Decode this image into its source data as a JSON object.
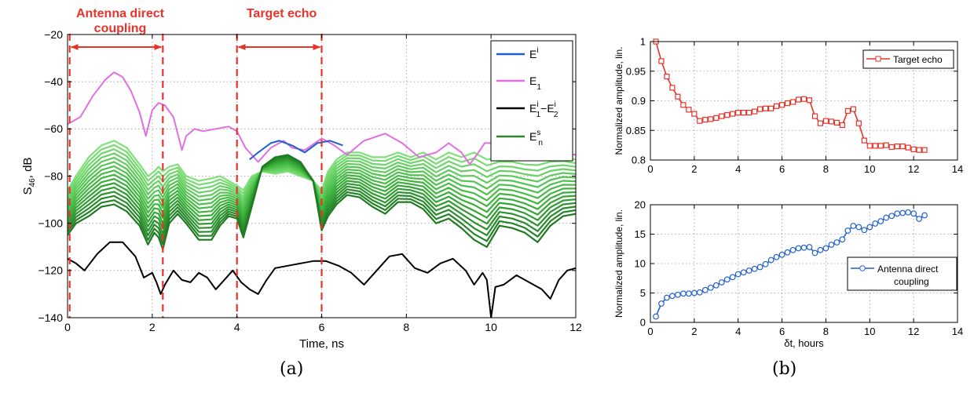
{
  "captions": {
    "a": "(a)",
    "b": "(b)"
  },
  "chart_data": [
    {
      "id": "a",
      "type": "line",
      "xlabel": "Time, ns",
      "ylabel": "S46, dB",
      "ylabel_main": "S",
      "ylabel_sub": "46",
      "ylabel_rest": ", dB",
      "xlim": [
        0,
        12
      ],
      "ylim": [
        -140,
        -20
      ],
      "xticks": [
        0,
        2,
        4,
        6,
        8,
        10,
        12
      ],
      "yticks": [
        -20,
        -40,
        -60,
        -80,
        -100,
        -120,
        -140
      ],
      "grid": true,
      "legend_position": "top-right",
      "legend": [
        {
          "main": "E",
          "sup": "i",
          "sub": "",
          "color": "#1f5fd0"
        },
        {
          "main": "E",
          "sup": "",
          "sub": "1",
          "color": "#e070e0"
        },
        {
          "main": "E",
          "sup": "i",
          "sub": "1",
          "tail_main": "−E",
          "tail_sup": "i",
          "tail_sub": "2",
          "color": "#000000"
        },
        {
          "main": "E",
          "sup": "s",
          "sub": "n",
          "color": "#2a8a2a"
        }
      ],
      "annotations": [
        {
          "text_lines": [
            "Antenna direct",
            "coupling"
          ],
          "x_from": 0.05,
          "x_to": 2.25,
          "color": "#e8322a"
        },
        {
          "text_lines": [
            "Target echo"
          ],
          "x_from": 4.0,
          "x_to": 6.0,
          "color": "#e8322a"
        }
      ],
      "series": [
        {
          "legend": "E1",
          "color": "#e070e0",
          "x": [
            0,
            0.3,
            0.6,
            0.9,
            1.1,
            1.3,
            1.5,
            1.7,
            1.85,
            2.0,
            2.15,
            2.3,
            2.5,
            2.7,
            2.8,
            3.0,
            3.2,
            3.5,
            3.8,
            4.0,
            4.2,
            4.5,
            4.8,
            5.1,
            5.3,
            5.6,
            6.0,
            6.3,
            6.6,
            7.0,
            7.5,
            7.9,
            8.3,
            8.7,
            9.0,
            9.3,
            9.5,
            9.7,
            9.85,
            10.0,
            10.2,
            10.5,
            10.8,
            11.0,
            11.3,
            11.6,
            12.0
          ],
          "y": [
            -58,
            -55,
            -46,
            -39,
            -36,
            -38,
            -44,
            -53,
            -63,
            -52,
            -49,
            -50,
            -55,
            -69,
            -63,
            -60,
            -61,
            -60,
            -59,
            -61,
            -68,
            -74,
            -68,
            -65,
            -68,
            -69,
            -64,
            -67,
            -71,
            -65,
            -62,
            -66,
            -72,
            -70,
            -66,
            -70,
            -75,
            -70,
            -66,
            -66,
            -69,
            -67,
            -69,
            -72,
            -68,
            -70,
            -71
          ]
        },
        {
          "legend": "Ei",
          "color": "#1f5fd0",
          "x": [
            4.3,
            4.5,
            4.8,
            5.0,
            5.3,
            5.6,
            5.9,
            6.2,
            6.5
          ],
          "y": [
            -73,
            -70,
            -66,
            -65,
            -67,
            -70,
            -66,
            -65,
            -67
          ]
        },
        {
          "legend": "Ei1-Ei2",
          "color": "#000000",
          "x": [
            0,
            0.2,
            0.4,
            0.7,
            1.0,
            1.3,
            1.6,
            1.8,
            2.0,
            2.1,
            2.2,
            2.3,
            2.5,
            2.7,
            2.9,
            3.1,
            3.3,
            3.5,
            3.7,
            3.9,
            4.1,
            4.3,
            4.5,
            4.7,
            4.9,
            5.2,
            5.5,
            5.8,
            6.1,
            6.4,
            6.7,
            7.0,
            7.3,
            7.6,
            7.9,
            8.2,
            8.5,
            8.8,
            9.1,
            9.4,
            9.6,
            9.8,
            9.9,
            10.0,
            10.1,
            10.3,
            10.6,
            10.9,
            11.2,
            11.4,
            11.6,
            11.8,
            12.0
          ],
          "y": [
            -115,
            -117,
            -120,
            -113,
            -108,
            -108,
            -114,
            -123,
            -121,
            -125,
            -130,
            -126,
            -120,
            -124,
            -125,
            -121,
            -123,
            -128,
            -124,
            -120,
            -125,
            -128,
            -130,
            -124,
            -119,
            -118,
            -117,
            -116,
            -116,
            -118,
            -121,
            -126,
            -120,
            -114,
            -113,
            -119,
            -121,
            -117,
            -115,
            -120,
            -126,
            -121,
            -124,
            -140,
            -127,
            -126,
            -122,
            -125,
            -128,
            -132,
            -124,
            -120,
            -119
          ]
        }
      ],
      "green_family": {
        "legend": "Esn",
        "count": 16,
        "x": [
          0,
          0.2,
          0.5,
          0.8,
          1.1,
          1.4,
          1.7,
          1.9,
          2.05,
          2.15,
          2.25,
          2.4,
          2.6,
          2.8,
          3.1,
          3.4,
          3.6,
          3.8,
          4.0,
          4.15,
          4.35,
          4.6,
          4.9,
          5.2,
          5.5,
          5.8,
          6.0,
          6.15,
          6.35,
          6.6,
          6.9,
          7.2,
          7.5,
          7.8,
          8.1,
          8.4,
          8.7,
          9.0,
          9.3,
          9.6,
          9.9,
          10.2,
          10.5,
          10.8,
          11.1,
          11.4,
          11.7,
          12.0
        ],
        "top": [
          -86,
          -80,
          -72,
          -67,
          -65,
          -68,
          -75,
          -80,
          -78,
          -76,
          -78,
          -76,
          -75,
          -80,
          -82,
          -81,
          -80,
          -82,
          -84,
          -86,
          -80,
          -78,
          -79,
          -78,
          -80,
          -82,
          -86,
          -78,
          -73,
          -70,
          -70,
          -72,
          -72,
          -70,
          -72,
          -70,
          -73,
          -70,
          -72,
          -70,
          -73,
          -72,
          -72,
          -73,
          -73,
          -72,
          -72,
          -73
        ],
        "bottom": [
          -105,
          -100,
          -97,
          -93,
          -92,
          -95,
          -101,
          -109,
          -104,
          -106,
          -111,
          -100,
          -96,
          -100,
          -107,
          -107,
          -101,
          -97,
          -98,
          -106,
          -93,
          -76,
          -72,
          -71,
          -74,
          -82,
          -103,
          -97,
          -92,
          -88,
          -89,
          -93,
          -96,
          -91,
          -91,
          -94,
          -100,
          -98,
          -102,
          -107,
          -110,
          -101,
          -102,
          -104,
          -108,
          -101,
          -97,
          -96
        ]
      }
    },
    {
      "id": "b-top",
      "type": "line",
      "xlabel": "",
      "ylabel": "Normalized amplitude, lin.",
      "xlim": [
        0,
        14
      ],
      "ylim": [
        0.8,
        1.0
      ],
      "xticks": [
        0,
        2,
        4,
        6,
        8,
        10,
        12,
        14
      ],
      "yticks": [
        0.8,
        0.85,
        0.9,
        0.95,
        1
      ],
      "ytick_labels": [
        "0.8",
        "0.85",
        "0.9",
        "0.95",
        "1"
      ],
      "grid": true,
      "legend_position": "top-right",
      "series": [
        {
          "name": "Target echo",
          "color": "#e8322a",
          "marker": "square",
          "x": [
            0.25,
            0.5,
            0.75,
            1,
            1.25,
            1.5,
            1.75,
            2,
            2.25,
            2.5,
            2.75,
            3,
            3.25,
            3.5,
            3.75,
            4,
            4.25,
            4.5,
            4.75,
            5,
            5.25,
            5.5,
            5.75,
            6,
            6.25,
            6.5,
            6.75,
            7,
            7.25,
            7.5,
            7.75,
            8,
            8.25,
            8.5,
            8.75,
            9,
            9.25,
            9.5,
            9.75,
            10,
            10.25,
            10.5,
            10.75,
            11,
            11.25,
            11.5,
            11.75,
            12,
            12.25,
            12.5
          ],
          "y": [
            1.0,
            0.967,
            0.941,
            0.922,
            0.907,
            0.893,
            0.885,
            0.878,
            0.866,
            0.868,
            0.869,
            0.871,
            0.874,
            0.876,
            0.878,
            0.88,
            0.88,
            0.88,
            0.882,
            0.886,
            0.887,
            0.887,
            0.891,
            0.893,
            0.896,
            0.898,
            0.902,
            0.903,
            0.901,
            0.874,
            0.862,
            0.866,
            0.865,
            0.863,
            0.859,
            0.883,
            0.886,
            0.862,
            0.833,
            0.824,
            0.824,
            0.824,
            0.825,
            0.822,
            0.823,
            0.823,
            0.821,
            0.818,
            0.817,
            0.817
          ]
        }
      ]
    },
    {
      "id": "b-bottom",
      "type": "line",
      "xlabel": "δt, hours",
      "ylabel": "Normalized amplitude, lin.",
      "xlim": [
        0,
        14
      ],
      "ylim": [
        0,
        20
      ],
      "xticks": [
        0,
        2,
        4,
        6,
        8,
        10,
        12,
        14
      ],
      "yticks": [
        0,
        5,
        10,
        15,
        20
      ],
      "grid": true,
      "legend_position": "bottom-right",
      "series": [
        {
          "name": "Antenna direct\ncoupling",
          "color": "#1f5fd0",
          "marker": "circle",
          "x": [
            0.25,
            0.5,
            0.75,
            1,
            1.25,
            1.5,
            1.75,
            2,
            2.25,
            2.5,
            2.75,
            3,
            3.25,
            3.5,
            3.75,
            4,
            4.25,
            4.5,
            4.75,
            5,
            5.25,
            5.5,
            5.75,
            6,
            6.25,
            6.5,
            6.75,
            7,
            7.25,
            7.5,
            7.75,
            8,
            8.25,
            8.5,
            8.75,
            9,
            9.25,
            9.5,
            9.75,
            10,
            10.25,
            10.5,
            10.75,
            11,
            11.25,
            11.5,
            11.75,
            12,
            12.25,
            12.5
          ],
          "y": [
            1.0,
            3.2,
            4.2,
            4.5,
            4.7,
            4.9,
            4.9,
            5.0,
            5.1,
            5.5,
            5.9,
            6.3,
            6.8,
            7.3,
            7.7,
            8.2,
            8.5,
            8.8,
            9.1,
            9.4,
            9.9,
            10.6,
            11.1,
            11.5,
            11.9,
            12.3,
            12.6,
            12.7,
            12.8,
            11.8,
            12.3,
            12.6,
            13.2,
            13.6,
            14.1,
            15.6,
            16.4,
            16.2,
            15.7,
            16.2,
            16.8,
            17.2,
            17.8,
            18.1,
            18.5,
            18.6,
            18.7,
            18.5,
            17.6,
            18.2
          ]
        }
      ]
    }
  ]
}
